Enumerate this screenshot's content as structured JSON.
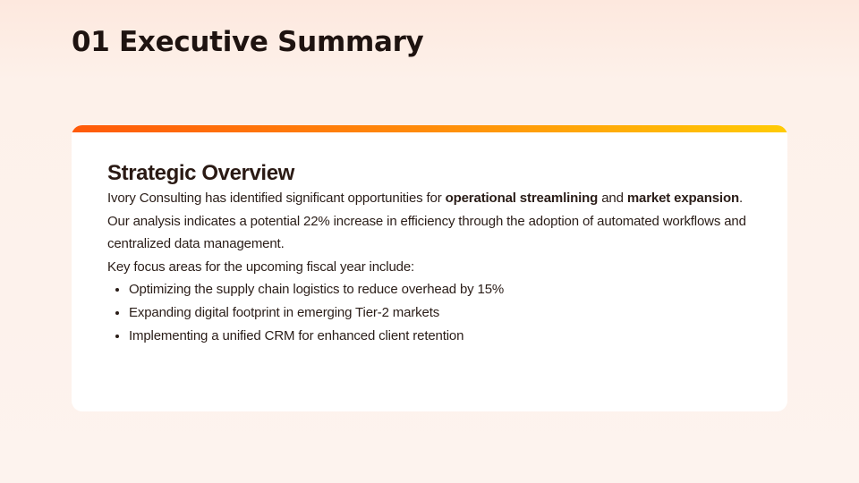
{
  "slide": {
    "title": "01 Executive Summary"
  },
  "card": {
    "accent_colors": [
      "#ff5a0a",
      "#ff8c0a",
      "#ffcb05"
    ],
    "heading": "Strategic Overview",
    "paragraph": {
      "part1": "Ivory Consulting has identified significant opportunities for ",
      "bold1": "operational streamlining",
      "part2": " and ",
      "bold2": "market expansion",
      "part3": ". Our analysis indicates a potential 22% increase in efficiency through the adoption of automated workflows and centralized data management."
    },
    "focus_intro": "Key focus areas for the upcoming fiscal year include:",
    "focus_items": [
      "Optimizing the supply chain logistics to reduce overhead by 15%",
      "Expanding digital footprint in emerging Tier-2 markets",
      "Implementing a unified CRM for enhanced client retention"
    ]
  }
}
